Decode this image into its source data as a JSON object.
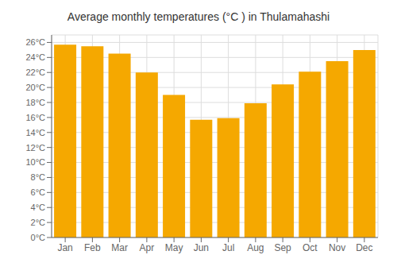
{
  "chart_data": {
    "type": "bar",
    "title": "Average monthly temperatures (°C ) in Thulamahashi",
    "categories": [
      "Jan",
      "Feb",
      "Mar",
      "Apr",
      "May",
      "Jun",
      "Jul",
      "Aug",
      "Sep",
      "Oct",
      "Nov",
      "Dec"
    ],
    "values": [
      25.7,
      25.5,
      24.5,
      22.0,
      19.0,
      15.7,
      15.9,
      17.9,
      20.4,
      22.1,
      23.5,
      25.0
    ],
    "color": "#F5A800",
    "ylim": [
      0,
      27
    ],
    "yticks": [
      {
        "value": 0,
        "label": "0°C"
      },
      {
        "value": 2,
        "label": "2°C"
      },
      {
        "value": 4,
        "label": "4°C"
      },
      {
        "value": 6,
        "label": "6°C"
      },
      {
        "value": 8,
        "label": "8°C"
      },
      {
        "value": 10,
        "label": "10°C"
      },
      {
        "value": 12,
        "label": "12°C"
      },
      {
        "value": 14,
        "label": "14°C"
      },
      {
        "value": 16,
        "label": "16°C"
      },
      {
        "value": 18,
        "label": "18°C"
      },
      {
        "value": 20,
        "label": "20°C"
      },
      {
        "value": 22,
        "label": "22°C"
      },
      {
        "value": 24,
        "label": "24°C"
      },
      {
        "value": 26,
        "label": "26°C"
      }
    ],
    "grid": true
  }
}
